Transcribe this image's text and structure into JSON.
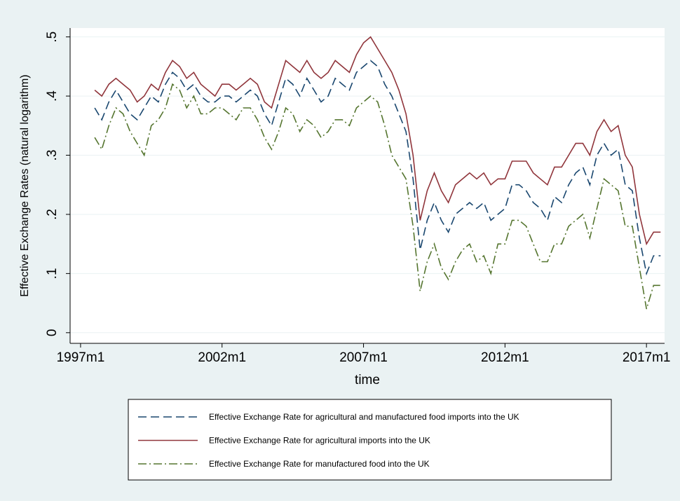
{
  "chart_data": {
    "type": "line",
    "xlabel": "time",
    "ylabel": "Effective Exchange Rates (natural logarithm)",
    "x": [
      1997.5,
      1997.75,
      1998,
      1998.25,
      1998.5,
      1998.75,
      1999,
      1999.25,
      1999.5,
      1999.75,
      2000,
      2000.25,
      2000.5,
      2000.75,
      2001,
      2001.25,
      2001.5,
      2001.75,
      2002,
      2002.25,
      2002.5,
      2002.75,
      2003,
      2003.25,
      2003.5,
      2003.75,
      2004,
      2004.25,
      2004.5,
      2004.75,
      2005,
      2005.25,
      2005.5,
      2005.75,
      2006,
      2006.25,
      2006.5,
      2006.75,
      2007,
      2007.25,
      2007.5,
      2007.75,
      2008,
      2008.25,
      2008.5,
      2008.75,
      2009,
      2009.25,
      2009.5,
      2009.75,
      2010,
      2010.25,
      2010.5,
      2010.75,
      2011,
      2011.25,
      2011.5,
      2011.75,
      2012,
      2012.25,
      2012.5,
      2012.75,
      2013,
      2013.25,
      2013.5,
      2013.75,
      2014,
      2014.25,
      2014.5,
      2014.75,
      2015,
      2015.25,
      2015.5,
      2015.75,
      2016,
      2016.25,
      2016.5,
      2016.75,
      2017,
      2017.25,
      2017.5
    ],
    "series": [
      {
        "name": "Effective Exchange Rate for agricultural and manufactured food imports into the UK",
        "color": "#1a476f",
        "dash": "dashed",
        "values": [
          0.38,
          0.36,
          0.39,
          0.41,
          0.39,
          0.37,
          0.36,
          0.38,
          0.4,
          0.39,
          0.42,
          0.44,
          0.43,
          0.41,
          0.42,
          0.4,
          0.39,
          0.39,
          0.4,
          0.4,
          0.39,
          0.4,
          0.41,
          0.4,
          0.37,
          0.35,
          0.39,
          0.43,
          0.42,
          0.4,
          0.43,
          0.41,
          0.39,
          0.4,
          0.43,
          0.42,
          0.41,
          0.44,
          0.45,
          0.46,
          0.45,
          0.42,
          0.4,
          0.37,
          0.34,
          0.26,
          0.14,
          0.19,
          0.22,
          0.19,
          0.17,
          0.2,
          0.21,
          0.22,
          0.21,
          0.22,
          0.19,
          0.2,
          0.21,
          0.25,
          0.25,
          0.24,
          0.22,
          0.21,
          0.19,
          0.23,
          0.22,
          0.25,
          0.27,
          0.28,
          0.25,
          0.3,
          0.32,
          0.3,
          0.31,
          0.25,
          0.24,
          0.16,
          0.1,
          0.13,
          0.13
        ]
      },
      {
        "name": "Effective Exchange Rate for agricultural imports into the UK",
        "color": "#90353b",
        "dash": "solid",
        "values": [
          0.41,
          0.4,
          0.42,
          0.43,
          0.42,
          0.41,
          0.39,
          0.4,
          0.42,
          0.41,
          0.44,
          0.46,
          0.45,
          0.43,
          0.44,
          0.42,
          0.41,
          0.4,
          0.42,
          0.42,
          0.41,
          0.42,
          0.43,
          0.42,
          0.39,
          0.38,
          0.42,
          0.46,
          0.45,
          0.44,
          0.46,
          0.44,
          0.43,
          0.44,
          0.46,
          0.45,
          0.44,
          0.47,
          0.49,
          0.5,
          0.48,
          0.46,
          0.44,
          0.41,
          0.37,
          0.3,
          0.19,
          0.24,
          0.27,
          0.24,
          0.22,
          0.25,
          0.26,
          0.27,
          0.26,
          0.27,
          0.25,
          0.26,
          0.26,
          0.29,
          0.29,
          0.29,
          0.27,
          0.26,
          0.25,
          0.28,
          0.28,
          0.3,
          0.32,
          0.32,
          0.3,
          0.34,
          0.36,
          0.34,
          0.35,
          0.3,
          0.28,
          0.2,
          0.15,
          0.17,
          0.17
        ]
      },
      {
        "name": "Effective Exchange Rate for manufactured food into the UK",
        "color": "#55752f",
        "dash": "dashdot",
        "values": [
          0.33,
          0.31,
          0.35,
          0.38,
          0.37,
          0.34,
          0.32,
          0.3,
          0.35,
          0.36,
          0.38,
          0.42,
          0.41,
          0.38,
          0.4,
          0.37,
          0.37,
          0.38,
          0.38,
          0.37,
          0.36,
          0.38,
          0.38,
          0.36,
          0.33,
          0.31,
          0.34,
          0.38,
          0.37,
          0.34,
          0.36,
          0.35,
          0.33,
          0.34,
          0.36,
          0.36,
          0.35,
          0.38,
          0.39,
          0.4,
          0.39,
          0.35,
          0.3,
          0.28,
          0.26,
          0.18,
          0.07,
          0.12,
          0.15,
          0.11,
          0.09,
          0.12,
          0.14,
          0.15,
          0.12,
          0.13,
          0.1,
          0.15,
          0.15,
          0.19,
          0.19,
          0.18,
          0.15,
          0.12,
          0.12,
          0.15,
          0.15,
          0.18,
          0.19,
          0.2,
          0.16,
          0.21,
          0.26,
          0.25,
          0.24,
          0.18,
          0.18,
          0.11,
          0.04,
          0.08,
          0.08
        ]
      }
    ],
    "xlim": [
      1996.63,
      2017.64
    ],
    "xticks": [
      {
        "value": 1997,
        "label": "1997m1"
      },
      {
        "value": 2002,
        "label": "2002m1"
      },
      {
        "value": 2007,
        "label": "2007m1"
      },
      {
        "value": 2012,
        "label": "2012m1"
      },
      {
        "value": 2017,
        "label": "2017m1"
      }
    ],
    "ylim": [
      -0.018,
      0.515
    ],
    "yticks": [
      0,
      {
        "value": 0.1,
        "label": ".1"
      },
      {
        "value": 0.2,
        "label": ".2"
      },
      {
        "value": 0.3,
        "label": ".3"
      },
      {
        "value": 0.4,
        "label": ".4"
      },
      {
        "value": 0.5,
        "label": ".5"
      }
    ],
    "grid": true,
    "legend": "bottom"
  }
}
